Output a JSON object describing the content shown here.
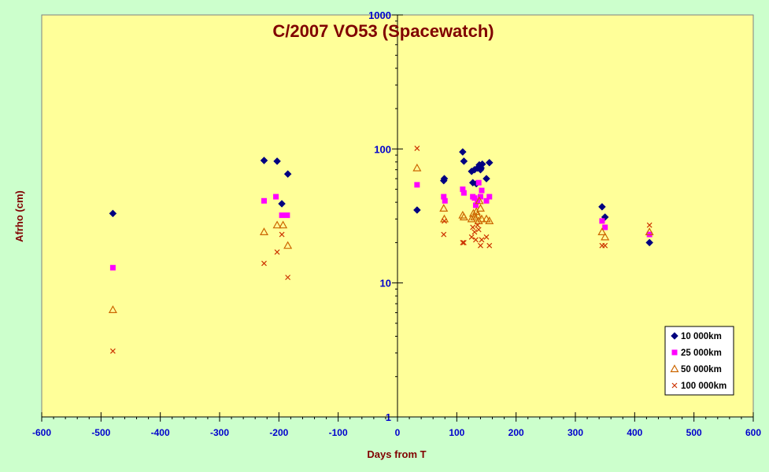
{
  "chart_data": {
    "type": "scatter",
    "title": "C/2007 VO53 (Spacewatch)",
    "xlabel": "Days from T",
    "ylabel": "Afrho (cm)",
    "xlim": [
      -600,
      600
    ],
    "ylim": [
      1,
      1000
    ],
    "yscale": "log",
    "x_ticks": [
      "-600",
      "-500",
      "-400",
      "-300",
      "-200",
      "-100",
      "0",
      "100",
      "200",
      "300",
      "400",
      "500",
      "600"
    ],
    "y_ticks": [
      "1",
      "10",
      "100",
      "1000"
    ],
    "grid": false,
    "legend_position": "bottom-right",
    "plot_background": "#ffff99",
    "page_background": "#ccffcc",
    "series": [
      {
        "name": "10 000km",
        "marker": "diamond",
        "color": "#000080",
        "points": [
          [
            -480,
            33
          ],
          [
            -225,
            82
          ],
          [
            -203,
            81
          ],
          [
            -195,
            39
          ],
          [
            -185,
            65
          ],
          [
            33,
            35
          ],
          [
            78,
            58
          ],
          [
            79,
            60
          ],
          [
            110,
            95
          ],
          [
            112,
            81
          ],
          [
            125,
            68
          ],
          [
            127,
            56
          ],
          [
            130,
            70
          ],
          [
            133,
            55
          ],
          [
            135,
            72
          ],
          [
            137,
            73
          ],
          [
            138,
            76
          ],
          [
            140,
            70
          ],
          [
            141,
            72
          ],
          [
            143,
            77
          ],
          [
            150,
            60
          ],
          [
            155,
            79
          ],
          [
            345,
            37
          ],
          [
            350,
            31
          ],
          [
            425,
            20
          ]
        ]
      },
      {
        "name": "25 000km",
        "marker": "square",
        "color": "#ff00ff",
        "points": [
          [
            -480,
            13
          ],
          [
            -225,
            41
          ],
          [
            -205,
            44
          ],
          [
            -195,
            32
          ],
          [
            -186,
            32
          ],
          [
            33,
            54
          ],
          [
            78,
            44
          ],
          [
            80,
            41
          ],
          [
            110,
            50
          ],
          [
            112,
            47
          ],
          [
            127,
            44
          ],
          [
            130,
            43
          ],
          [
            132,
            38
          ],
          [
            135,
            41
          ],
          [
            137,
            56
          ],
          [
            140,
            44
          ],
          [
            142,
            49
          ],
          [
            150,
            41
          ],
          [
            155,
            44
          ],
          [
            345,
            29
          ],
          [
            350,
            26
          ],
          [
            425,
            23
          ]
        ]
      },
      {
        "name": "50 000km",
        "marker": "triangle",
        "color": "#cc6600",
        "points": [
          [
            -480,
            6.3
          ],
          [
            -225,
            24
          ],
          [
            -203,
            27
          ],
          [
            -193,
            27
          ],
          [
            -185,
            19
          ],
          [
            33,
            72
          ],
          [
            78,
            36
          ],
          [
            79,
            30
          ],
          [
            110,
            32
          ],
          [
            112,
            31
          ],
          [
            125,
            30
          ],
          [
            128,
            33
          ],
          [
            130,
            31
          ],
          [
            133,
            34
          ],
          [
            135,
            32
          ],
          [
            137,
            29
          ],
          [
            138,
            41
          ],
          [
            140,
            36
          ],
          [
            142,
            30
          ],
          [
            150,
            30
          ],
          [
            155,
            29
          ],
          [
            345,
            24
          ],
          [
            350,
            22
          ],
          [
            425,
            24
          ]
        ]
      },
      {
        "name": "100 000km",
        "marker": "x",
        "color": "#cc3300",
        "points": [
          [
            -480,
            3.1
          ],
          [
            -225,
            14
          ],
          [
            -203,
            17
          ],
          [
            -195,
            23
          ],
          [
            -185,
            11
          ],
          [
            33,
            101
          ],
          [
            78,
            23
          ],
          [
            79,
            29
          ],
          [
            110,
            20
          ],
          [
            112,
            20
          ],
          [
            125,
            22
          ],
          [
            127,
            26
          ],
          [
            130,
            24
          ],
          [
            132,
            21
          ],
          [
            135,
            27
          ],
          [
            137,
            25
          ],
          [
            140,
            19
          ],
          [
            142,
            21
          ],
          [
            150,
            22
          ],
          [
            155,
            19
          ],
          [
            345,
            19
          ],
          [
            350,
            19
          ],
          [
            425,
            27
          ]
        ]
      }
    ]
  }
}
